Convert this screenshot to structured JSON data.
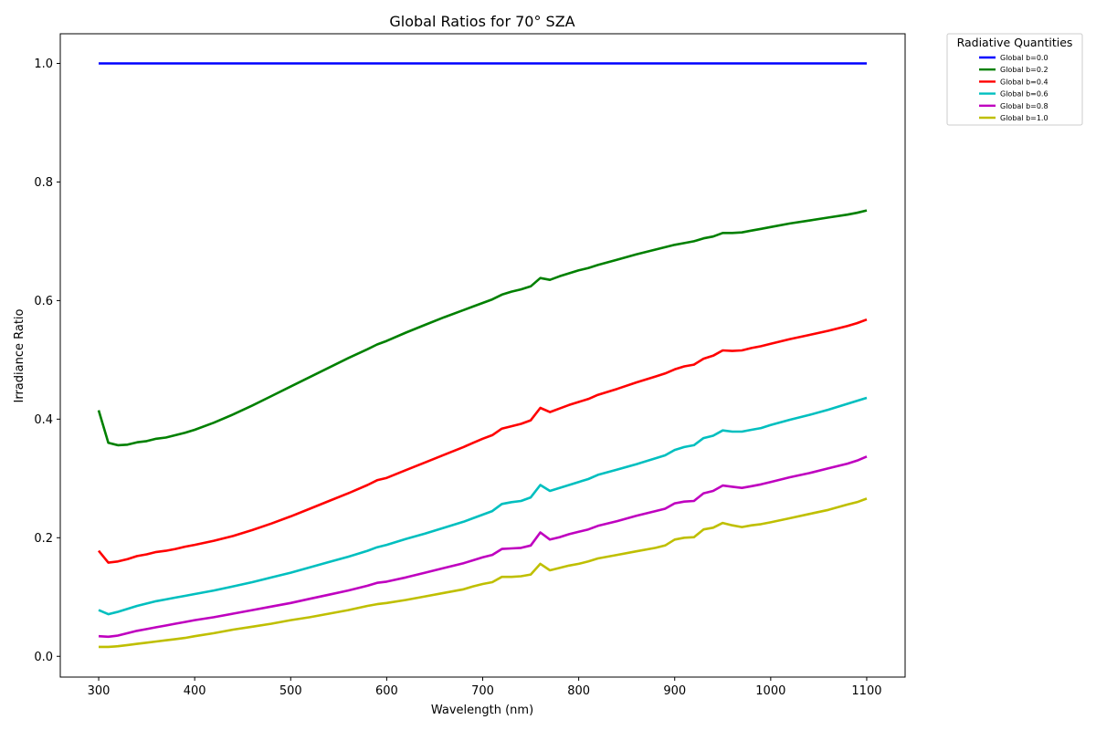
{
  "chart_data": {
    "type": "line",
    "title": "Global Ratios for 70° SZA",
    "xlabel": "Wavelength (nm)",
    "ylabel": "Irradiance Ratio",
    "xlim": [
      260,
      1140
    ],
    "ylim": [
      -0.035,
      1.05
    ],
    "xticks": [
      300,
      400,
      500,
      600,
      700,
      800,
      900,
      1000,
      1100
    ],
    "yticks": [
      0.0,
      0.2,
      0.4,
      0.6,
      0.8,
      1.0
    ],
    "xtick_labels": [
      "300",
      "400",
      "500",
      "600",
      "700",
      "800",
      "900",
      "1000",
      "1100"
    ],
    "ytick_labels": [
      "0.0",
      "0.2",
      "0.4",
      "0.6",
      "0.8",
      "1.0"
    ],
    "grid": false,
    "legend": {
      "title": "Radiative Quantities",
      "placement": "outside-top-right"
    },
    "x": [
      300,
      310,
      320,
      330,
      340,
      350,
      360,
      370,
      380,
      390,
      400,
      420,
      440,
      460,
      480,
      500,
      520,
      540,
      560,
      580,
      590,
      600,
      620,
      640,
      660,
      680,
      690,
      700,
      710,
      720,
      730,
      740,
      750,
      760,
      770,
      780,
      790,
      800,
      810,
      820,
      840,
      860,
      880,
      890,
      900,
      910,
      920,
      930,
      940,
      950,
      960,
      970,
      980,
      990,
      1000,
      1020,
      1040,
      1060,
      1080,
      1090,
      1100
    ],
    "series": [
      {
        "name": "Global b=0.0",
        "color": "#0000ff",
        "values": [
          1,
          1,
          1,
          1,
          1,
          1,
          1,
          1,
          1,
          1,
          1,
          1,
          1,
          1,
          1,
          1,
          1,
          1,
          1,
          1,
          1,
          1,
          1,
          1,
          1,
          1,
          1,
          1,
          1,
          1,
          1,
          1,
          1,
          1,
          1,
          1,
          1,
          1,
          1,
          1,
          1,
          1,
          1,
          1,
          1,
          1,
          1,
          1,
          1,
          1,
          1,
          1,
          1,
          1,
          1,
          1,
          1,
          1,
          1,
          1,
          1
        ]
      },
      {
        "name": "Global b=0.2",
        "color": "#008000",
        "values": [
          0.415,
          0.36,
          0.356,
          0.357,
          0.361,
          0.363,
          0.367,
          0.369,
          0.373,
          0.377,
          0.382,
          0.394,
          0.408,
          0.423,
          0.439,
          0.455,
          0.471,
          0.487,
          0.503,
          0.518,
          0.526,
          0.532,
          0.546,
          0.559,
          0.572,
          0.584,
          0.59,
          0.596,
          0.602,
          0.61,
          0.615,
          0.619,
          0.624,
          0.638,
          0.635,
          0.641,
          0.646,
          0.651,
          0.655,
          0.66,
          0.669,
          0.678,
          0.686,
          0.69,
          0.694,
          0.697,
          0.7,
          0.705,
          0.708,
          0.714,
          0.714,
          0.715,
          0.718,
          0.721,
          0.724,
          0.73,
          0.735,
          0.74,
          0.745,
          0.748,
          0.752
        ]
      },
      {
        "name": "Global b=0.4",
        "color": "#ff0000",
        "values": [
          0.178,
          0.158,
          0.16,
          0.164,
          0.169,
          0.172,
          0.176,
          0.178,
          0.181,
          0.185,
          0.188,
          0.195,
          0.203,
          0.213,
          0.224,
          0.236,
          0.249,
          0.262,
          0.275,
          0.289,
          0.297,
          0.301,
          0.314,
          0.327,
          0.34,
          0.353,
          0.36,
          0.367,
          0.373,
          0.384,
          0.388,
          0.392,
          0.398,
          0.419,
          0.412,
          0.418,
          0.424,
          0.429,
          0.434,
          0.441,
          0.451,
          0.462,
          0.472,
          0.477,
          0.484,
          0.489,
          0.492,
          0.502,
          0.507,
          0.516,
          0.515,
          0.516,
          0.52,
          0.523,
          0.527,
          0.535,
          0.542,
          0.549,
          0.557,
          0.562,
          0.568
        ]
      },
      {
        "name": "Global b=0.6",
        "color": "#00bfbf",
        "values": [
          0.078,
          0.071,
          0.075,
          0.08,
          0.085,
          0.089,
          0.093,
          0.096,
          0.099,
          0.102,
          0.105,
          0.111,
          0.118,
          0.125,
          0.133,
          0.141,
          0.15,
          0.159,
          0.168,
          0.178,
          0.184,
          0.188,
          0.198,
          0.207,
          0.217,
          0.227,
          0.233,
          0.239,
          0.245,
          0.257,
          0.26,
          0.262,
          0.268,
          0.289,
          0.279,
          0.284,
          0.289,
          0.294,
          0.299,
          0.306,
          0.315,
          0.324,
          0.334,
          0.339,
          0.348,
          0.353,
          0.356,
          0.368,
          0.372,
          0.381,
          0.379,
          0.379,
          0.382,
          0.385,
          0.39,
          0.399,
          0.407,
          0.416,
          0.426,
          0.431,
          0.436
        ]
      },
      {
        "name": "Global b=0.8",
        "color": "#bf00bf",
        "values": [
          0.034,
          0.033,
          0.035,
          0.039,
          0.043,
          0.046,
          0.049,
          0.052,
          0.055,
          0.058,
          0.061,
          0.066,
          0.072,
          0.078,
          0.084,
          0.09,
          0.097,
          0.104,
          0.111,
          0.119,
          0.124,
          0.126,
          0.133,
          0.141,
          0.149,
          0.157,
          0.162,
          0.167,
          0.171,
          0.181,
          0.182,
          0.183,
          0.187,
          0.209,
          0.197,
          0.201,
          0.206,
          0.21,
          0.214,
          0.22,
          0.228,
          0.237,
          0.245,
          0.249,
          0.258,
          0.261,
          0.262,
          0.275,
          0.279,
          0.288,
          0.286,
          0.284,
          0.287,
          0.29,
          0.294,
          0.302,
          0.309,
          0.317,
          0.325,
          0.33,
          0.337
        ]
      },
      {
        "name": "Global b=1.0",
        "color": "#bfbf00",
        "values": [
          0.016,
          0.016,
          0.017,
          0.019,
          0.021,
          0.023,
          0.025,
          0.027,
          0.029,
          0.031,
          0.034,
          0.039,
          0.045,
          0.05,
          0.055,
          0.061,
          0.066,
          0.072,
          0.078,
          0.085,
          0.088,
          0.09,
          0.095,
          0.101,
          0.107,
          0.113,
          0.118,
          0.122,
          0.125,
          0.134,
          0.134,
          0.135,
          0.138,
          0.156,
          0.145,
          0.149,
          0.153,
          0.156,
          0.16,
          0.165,
          0.171,
          0.177,
          0.183,
          0.187,
          0.197,
          0.2,
          0.201,
          0.214,
          0.217,
          0.225,
          0.221,
          0.218,
          0.221,
          0.223,
          0.226,
          0.233,
          0.24,
          0.247,
          0.256,
          0.26,
          0.266
        ]
      }
    ]
  }
}
